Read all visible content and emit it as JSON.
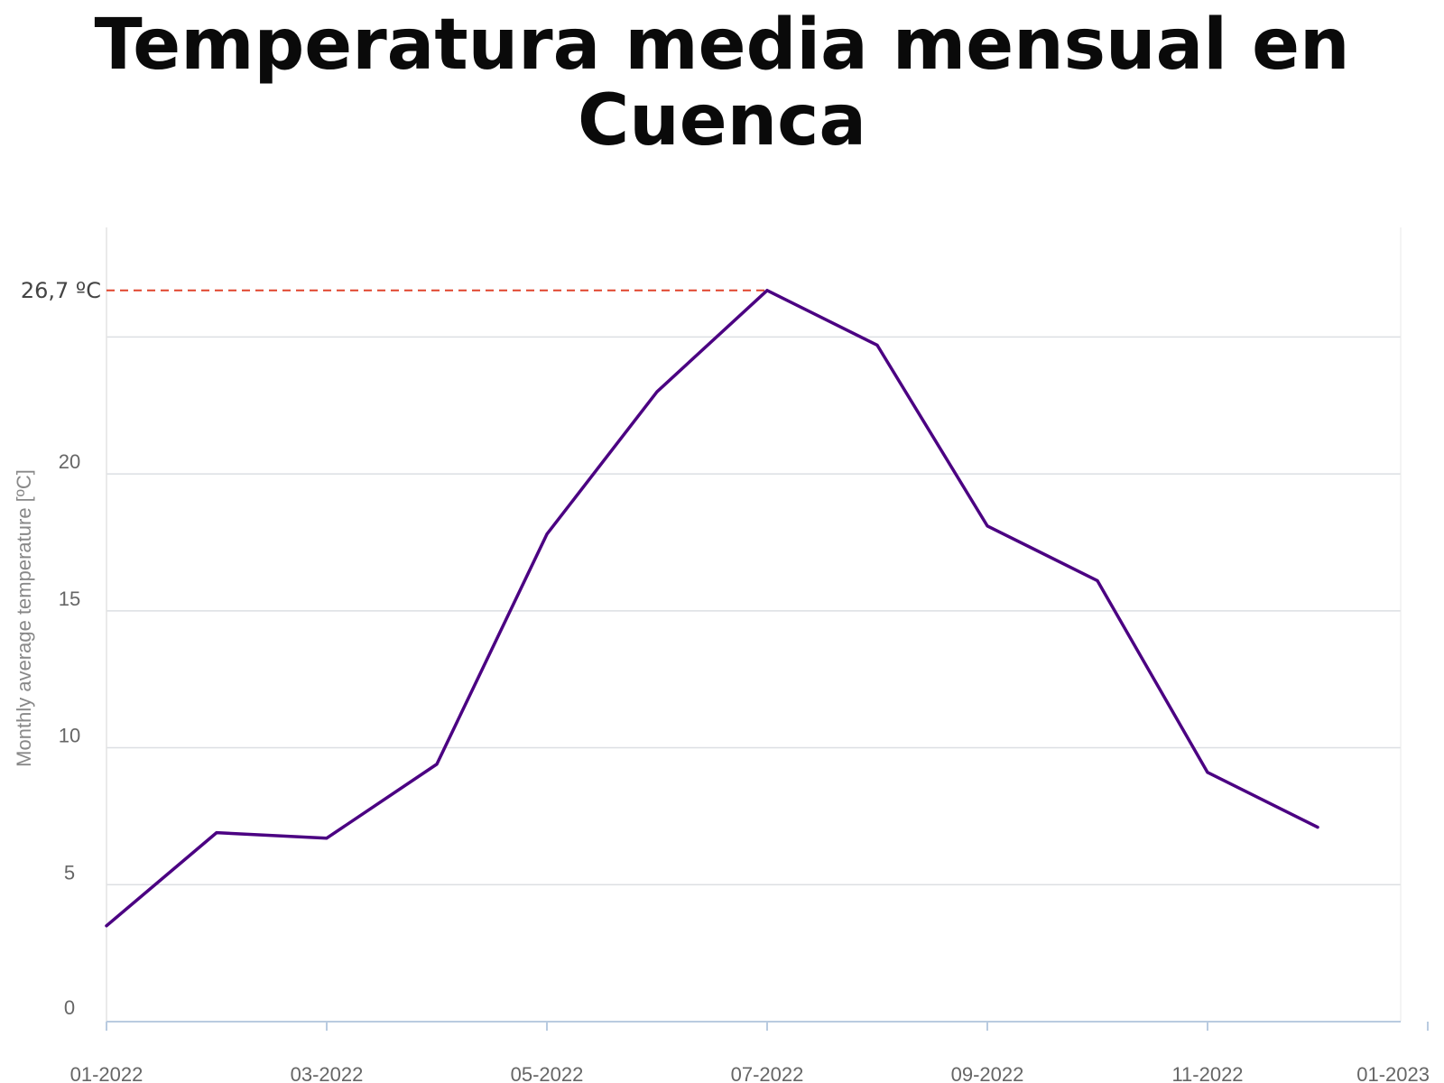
{
  "title": "Temperatura media mensual en Cuenca",
  "chart_data": {
    "type": "line",
    "title": "Temperatura media mensual en Cuenca",
    "xlabel": "",
    "ylabel": "Monthly average temperature [ºC]",
    "x": [
      "01-2022",
      "02-2022",
      "03-2022",
      "04-2022",
      "05-2022",
      "06-2022",
      "07-2022",
      "08-2022",
      "09-2022",
      "10-2022",
      "11-2022",
      "12-2022"
    ],
    "x_tick_labels": [
      "01-2022",
      "03-2022",
      "05-2022",
      "07-2022",
      "09-2022",
      "11-2022",
      "01-2023"
    ],
    "y_ticks": [
      0,
      5,
      10,
      15,
      20
    ],
    "ylim": [
      0,
      29
    ],
    "grid": true,
    "series": [
      {
        "values": [
          3.5,
          6.9,
          6.7,
          9.4,
          17.8,
          23.0,
          26.7,
          24.7,
          18.1,
          16.1,
          9.1,
          7.1
        ],
        "color": "#4b0082"
      }
    ],
    "annotation": {
      "label": "26,7 ºC",
      "value": 26.7,
      "color": "#e0442c"
    }
  }
}
